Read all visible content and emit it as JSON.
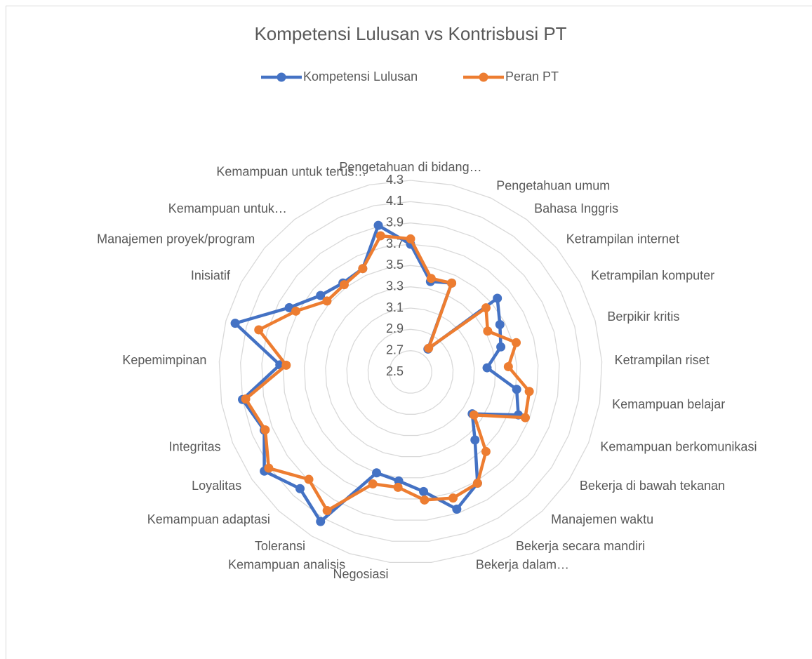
{
  "chart_data": {
    "type": "radar",
    "title": "Kompetensi Lulusan vs Kontrisbusi PT",
    "categories": [
      "Pengetahuan di bidang…",
      null,
      "Pengetahuan umum",
      "Bahasa Inggris",
      "Ketrampilan internet",
      "Ketrampilan komputer",
      "Berpikir kritis",
      "Ketrampilan riset",
      "Kemampuan belajar",
      "Kemampuan berkomunikasi",
      "Bekerja di bawah tekanan",
      "Manajemen waktu",
      "Bekerja secara mandiri",
      "Bekerja dalam…",
      null,
      "Negosiasi",
      "Kemampuan analisis",
      "Toleransi",
      "Kemampuan adaptasi",
      "Loyalitas",
      "Integritas",
      null,
      "Kepemimpinan",
      null,
      "Inisiatif",
      "Manajemen proyek/program",
      "Kemampuan untuk…",
      null,
      "Kemampuan untuk terus…"
    ],
    "series": [
      {
        "name": "Kompetensi Lulusan",
        "color": "#4472c4",
        "values": [
          3.7,
          3.37,
          3.42,
          2.77,
          3.57,
          3.45,
          3.38,
          3.22,
          3.51,
          3.59,
          3.2,
          3.38,
          3.72,
          3.86,
          3.63,
          3.53,
          3.5,
          4.14,
          4.01,
          4.16,
          3.98,
          4.1,
          3.73,
          4.21,
          3.79,
          3.61,
          3.55,
          3.57,
          3.91
        ]
      },
      {
        "name": "Peran PT",
        "color": "#ed7d31",
        "values": [
          3.75,
          3.4,
          3.42,
          2.78,
          3.43,
          3.32,
          3.53,
          3.42,
          3.63,
          3.66,
          3.22,
          3.53,
          3.72,
          3.75,
          3.71,
          3.59,
          3.61,
          4.02,
          3.89,
          4.11,
          3.97,
          4.07,
          3.67,
          3.98,
          3.72,
          3.53,
          3.53,
          3.57,
          3.81
        ]
      }
    ],
    "ylim": [
      2.5,
      4.3
    ],
    "yticks": [
      2.5,
      2.7,
      2.9,
      3.1,
      3.3,
      3.5,
      3.7,
      3.9,
      4.1,
      4.3
    ],
    "grid": true,
    "legend": "top"
  }
}
